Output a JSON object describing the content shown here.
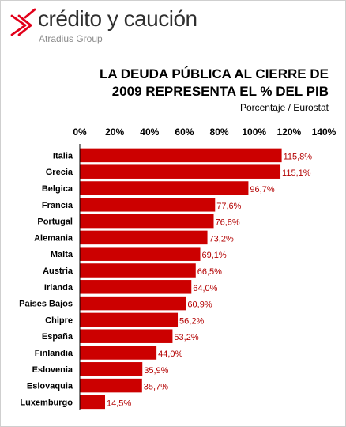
{
  "brand": {
    "name": "crédito y caución",
    "subtitle": "Atradius Group",
    "accent_color": "#e2001a",
    "mark_icon": "arrow-chevrons-icon"
  },
  "header": {
    "title_line1": "LA DEUDA PÚBLICA AL CIERRE DE",
    "title_line2": "2009 REPRESENTA EL % DEL PIB",
    "subtitle": "Porcentaje / Eurostat"
  },
  "chart_data": {
    "type": "bar",
    "orientation": "horizontal",
    "title": "LA DEUDA PÚBLICA AL CIERRE DE 2009 REPRESENTA EL % DEL PIB",
    "subtitle": "Porcentaje / Eurostat",
    "xlabel": "",
    "ylabel": "",
    "xlim": [
      0,
      140
    ],
    "x_ticks": [
      0,
      20,
      40,
      60,
      80,
      100,
      120,
      140
    ],
    "x_tick_labels": [
      "0%",
      "20%",
      "40%",
      "60%",
      "80%",
      "100%",
      "120%",
      "140%"
    ],
    "axis_position": "top",
    "grid": false,
    "legend": "none",
    "bar_color": "#cc0000",
    "label_color": "#b30000",
    "categories": [
      "Italia",
      "Grecia",
      "Belgica",
      "Francia",
      "Portugal",
      "Alemania",
      "Malta",
      "Austria",
      "Irlanda",
      "Paises Bajos",
      "Chipre",
      "España",
      "Finlandia",
      "Eslovenia",
      "Eslovaquia",
      "Luxemburgo"
    ],
    "values": [
      115.8,
      115.1,
      96.7,
      77.6,
      76.8,
      73.2,
      69.1,
      66.5,
      64.0,
      60.9,
      56.2,
      53.2,
      44.0,
      35.9,
      35.7,
      14.5
    ],
    "data_labels": [
      "115,8%",
      "115,1%",
      "96,7%",
      "77,6%",
      "76,8%",
      "73,2%",
      "69,1%",
      "66,5%",
      "64,0%",
      "60,9%",
      "56,2%",
      "53,2%",
      "44,0%",
      "35,9%",
      "35,7%",
      "14,5%"
    ]
  }
}
